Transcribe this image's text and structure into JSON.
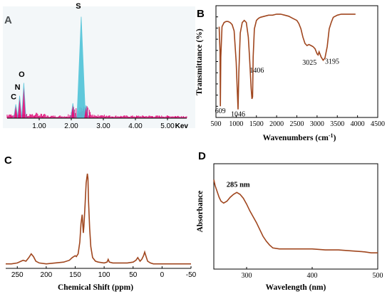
{
  "chart_data": [
    {
      "panel_label": "A",
      "type": "bar",
      "xlabel": "Kev",
      "x_ticks": [
        "1.00",
        "2.00",
        "3.00",
        "4.00",
        "5.00"
      ],
      "xlim": [
        0,
        5.6
      ],
      "ylim": [
        0,
        100
      ],
      "peak_labels": [
        {
          "text": "C",
          "x": 0.27,
          "y": 15
        },
        {
          "text": "N",
          "x": 0.39,
          "y": 24
        },
        {
          "text": "O",
          "x": 0.52,
          "y": 36
        },
        {
          "text": "S",
          "x": 2.31,
          "y": 100
        }
      ],
      "peaks": [
        {
          "x": 0.27,
          "y": 13
        },
        {
          "x": 0.39,
          "y": 21
        },
        {
          "x": 0.52,
          "y": 33
        },
        {
          "x": 2.05,
          "y": 14
        },
        {
          "x": 2.31,
          "y": 95
        },
        {
          "x": 2.46,
          "y": 12
        }
      ],
      "colors": {
        "bars": "#e0107a",
        "peaks": "#4fc3d8"
      }
    },
    {
      "panel_label": "B",
      "type": "line",
      "xlabel": "Wavenumbers (cm-1)",
      "xlabel_main": "Wavenumbers (cm",
      "xlabel_sup": "-1",
      "xlabel_end": ")",
      "ylabel": "Transmittance (%)",
      "x_ticks": [
        "500",
        "1000",
        "1500",
        "2000",
        "2500",
        "3000",
        "3500",
        "4000",
        "4500"
      ],
      "xlim": [
        500,
        4500
      ],
      "ylim": [
        0,
        100
      ],
      "annotations": [
        "609",
        "1046",
        "1406",
        "3025",
        "3195"
      ],
      "series": [
        {
          "x": [
            580,
            600,
            609,
            620,
            650,
            700,
            750,
            800,
            850,
            900,
            950,
            1000,
            1030,
            1046,
            1065,
            1100,
            1150,
            1200,
            1250,
            1300,
            1330,
            1370,
            1390,
            1406,
            1420,
            1450,
            1500,
            1550,
            1600,
            1700,
            1800,
            1900,
            2000,
            2100,
            2200,
            2300,
            2400,
            2500,
            2550,
            2600,
            2650,
            2700,
            2750,
            2800,
            2850,
            2900,
            2950,
            3000,
            3025,
            3050,
            3100,
            3150,
            3195,
            3250,
            3300,
            3350,
            3400,
            3500,
            3600,
            3700,
            3800,
            3900,
            3950
          ],
          "y": [
            84,
            60,
            8,
            55,
            84,
            88,
            89,
            89,
            88,
            86,
            80,
            50,
            20,
            5,
            40,
            78,
            88,
            90,
            88,
            74,
            55,
            25,
            15,
            17,
            55,
            82,
            90,
            92,
            93,
            94,
            95,
            95,
            96,
            96,
            95,
            94,
            92,
            90,
            87,
            82,
            74,
            68,
            66,
            67,
            66,
            65,
            63,
            58,
            57,
            60,
            55,
            52,
            54,
            65,
            82,
            88,
            93,
            95,
            96,
            96,
            96,
            96,
            96
          ]
        }
      ],
      "colors": {
        "line": "#a0461e"
      }
    },
    {
      "panel_label": "C",
      "type": "line",
      "xlabel": "Chemical Shift (ppm)",
      "x_ticks": [
        "250",
        "200",
        "150",
        "100",
        "50",
        "0",
        "-50"
      ],
      "xlim": [
        270,
        -50
      ],
      "ylim": [
        0,
        100
      ],
      "series": [
        {
          "x": [
            270,
            260,
            250,
            240,
            235,
            230,
            226,
            222,
            218,
            212,
            200,
            185,
            170,
            160,
            155,
            150,
            148,
            145,
            142,
            140,
            138,
            136,
            135,
            133,
            131,
            129,
            128,
            127,
            125,
            123,
            120,
            115,
            110,
            100,
            95,
            93,
            91,
            85,
            75,
            60,
            50,
            45,
            42,
            38,
            35,
            32,
            30,
            27,
            25,
            20,
            15,
            10,
            0,
            -10,
            -20,
            -30,
            -40,
            -50
          ],
          "y": [
            1,
            1,
            2,
            5,
            4,
            8,
            12,
            9,
            4,
            2,
            1,
            2,
            3,
            5,
            8,
            10,
            9,
            12,
            25,
            45,
            55,
            35,
            42,
            65,
            90,
            100,
            95,
            70,
            40,
            20,
            8,
            4,
            3,
            2,
            3,
            6,
            3,
            2,
            2,
            2,
            3,
            5,
            8,
            4,
            6,
            10,
            14,
            8,
            4,
            2,
            1,
            1,
            1,
            1,
            1,
            1,
            1,
            1
          ]
        }
      ],
      "colors": {
        "line": "#a0461e"
      }
    },
    {
      "panel_label": "D",
      "type": "line",
      "xlabel": "Wavelength (nm)",
      "ylabel": "Absorbance",
      "x_ticks": [
        "300",
        "400",
        "500"
      ],
      "xlim": [
        250,
        500
      ],
      "ylim": [
        0,
        100
      ],
      "annotations": [
        "285 nm"
      ],
      "series": [
        {
          "x": [
            250,
            252,
            255,
            258,
            261,
            265,
            270,
            275,
            280,
            285,
            290,
            295,
            300,
            305,
            310,
            315,
            320,
            325,
            330,
            335,
            340,
            350,
            360,
            380,
            400,
            420,
            440,
            460,
            480,
            490,
            500
          ],
          "y": [
            88,
            82,
            76,
            70,
            66,
            64,
            66,
            70,
            73,
            75,
            73,
            69,
            63,
            56,
            50,
            44,
            37,
            30,
            25,
            21,
            18,
            17,
            17,
            17,
            17,
            16,
            16,
            15,
            14,
            13,
            13
          ]
        }
      ],
      "colors": {
        "line": "#a0461e"
      }
    }
  ]
}
